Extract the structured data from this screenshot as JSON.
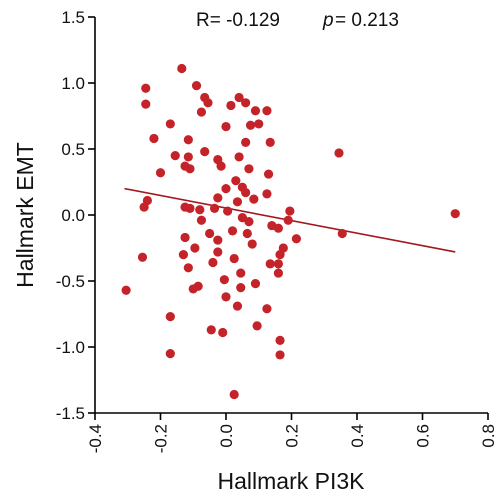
{
  "chart_data": {
    "type": "scatter",
    "xlabel": "Hallmark PI3K",
    "ylabel": "Hallmark EMT",
    "xlim": [
      -0.4,
      0.8
    ],
    "ylim": [
      -1.5,
      1.5
    ],
    "x_ticks": [
      "-0.4",
      "-0.2",
      "0.0",
      "0.2",
      "0.4",
      "0.6",
      "0.8"
    ],
    "y_ticks": [
      "1.5",
      "1.0",
      "0.5",
      "0.0",
      "-0.5",
      "-1.0",
      "-1.5"
    ],
    "grid": false,
    "annotation": {
      "r_label": "R= -0.129",
      "p_symbol": "p",
      "p_value": "= 0.213"
    },
    "fit_line": {
      "x": [
        -0.31,
        0.7
      ],
      "y": [
        0.2,
        -0.28
      ]
    },
    "point_color": "#c4232a",
    "line_color": "#a3181d",
    "points": [
      [
        -0.135,
        1.11
      ],
      [
        -0.09,
        0.98
      ],
      [
        -0.245,
        0.96
      ],
      [
        -0.065,
        0.89
      ],
      [
        0.04,
        0.89
      ],
      [
        -0.245,
        0.84
      ],
      [
        -0.055,
        0.85
      ],
      [
        0.015,
        0.83
      ],
      [
        0.06,
        0.85
      ],
      [
        -0.075,
        0.78
      ],
      [
        0.09,
        0.79
      ],
      [
        0.125,
        0.79
      ],
      [
        -0.17,
        0.69
      ],
      [
        0.0,
        0.67
      ],
      [
        0.075,
        0.68
      ],
      [
        0.1,
        0.69
      ],
      [
        -0.22,
        0.58
      ],
      [
        -0.115,
        0.57
      ],
      [
        0.06,
        0.55
      ],
      [
        0.135,
        0.55
      ],
      [
        -0.065,
        0.48
      ],
      [
        -0.155,
        0.45
      ],
      [
        -0.115,
        0.44
      ],
      [
        0.04,
        0.44
      ],
      [
        -0.025,
        0.42
      ],
      [
        0.345,
        0.47
      ],
      [
        -0.125,
        0.37
      ],
      [
        -0.11,
        0.35
      ],
      [
        -0.015,
        0.37
      ],
      [
        -0.2,
        0.32
      ],
      [
        0.07,
        0.35
      ],
      [
        0.03,
        0.26
      ],
      [
        0.13,
        0.31
      ],
      [
        0.0,
        0.2
      ],
      [
        0.05,
        0.21
      ],
      [
        0.06,
        0.17
      ],
      [
        0.125,
        0.16
      ],
      [
        0.085,
        0.12
      ],
      [
        -0.025,
        0.13
      ],
      [
        0.035,
        0.1
      ],
      [
        -0.24,
        0.11
      ],
      [
        -0.25,
        0.06
      ],
      [
        -0.125,
        0.06
      ],
      [
        -0.11,
        0.05
      ],
      [
        -0.08,
        0.04
      ],
      [
        -0.035,
        0.05
      ],
      [
        0.005,
        0.03
      ],
      [
        0.195,
        0.03
      ],
      [
        0.05,
        -0.02
      ],
      [
        0.07,
        -0.05
      ],
      [
        0.19,
        -0.04
      ],
      [
        0.7,
        0.01
      ],
      [
        -0.075,
        -0.04
      ],
      [
        0.14,
        -0.08
      ],
      [
        0.16,
        -0.1
      ],
      [
        0.02,
        -0.12
      ],
      [
        0.065,
        -0.14
      ],
      [
        0.355,
        -0.14
      ],
      [
        -0.125,
        -0.17
      ],
      [
        -0.05,
        -0.14
      ],
      [
        -0.025,
        -0.19
      ],
      [
        0.215,
        -0.18
      ],
      [
        0.08,
        -0.22
      ],
      [
        -0.095,
        -0.25
      ],
      [
        0.175,
        -0.25
      ],
      [
        -0.025,
        -0.28
      ],
      [
        0.165,
        -0.3
      ],
      [
        -0.255,
        -0.32
      ],
      [
        -0.13,
        -0.3
      ],
      [
        0.025,
        -0.33
      ],
      [
        -0.04,
        -0.36
      ],
      [
        0.135,
        -0.37
      ],
      [
        0.16,
        -0.37
      ],
      [
        -0.115,
        -0.4
      ],
      [
        0.045,
        -0.44
      ],
      [
        0.16,
        -0.44
      ],
      [
        -0.005,
        -0.49
      ],
      [
        0.09,
        -0.52
      ],
      [
        -0.305,
        -0.57
      ],
      [
        -0.085,
        -0.54
      ],
      [
        -0.1,
        -0.56
      ],
      [
        0.045,
        -0.55
      ],
      [
        0.0,
        -0.62
      ],
      [
        0.035,
        -0.69
      ],
      [
        0.125,
        -0.71
      ],
      [
        -0.17,
        -0.77
      ],
      [
        0.095,
        -0.84
      ],
      [
        -0.045,
        -0.87
      ],
      [
        -0.01,
        -0.89
      ],
      [
        0.165,
        -0.95
      ],
      [
        -0.17,
        -1.05
      ],
      [
        0.165,
        -1.06
      ],
      [
        0.025,
        -1.36
      ]
    ]
  }
}
